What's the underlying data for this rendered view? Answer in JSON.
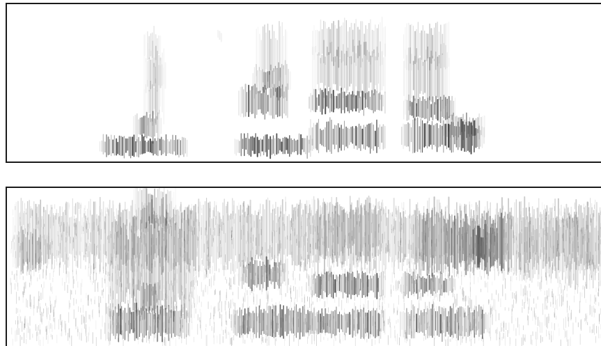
{
  "panels": [
    {
      "id": "clean",
      "blob_color": "#1c1c1c"
    },
    {
      "id": "noisy",
      "blob_color": "#1c1c1c"
    }
  ]
}
